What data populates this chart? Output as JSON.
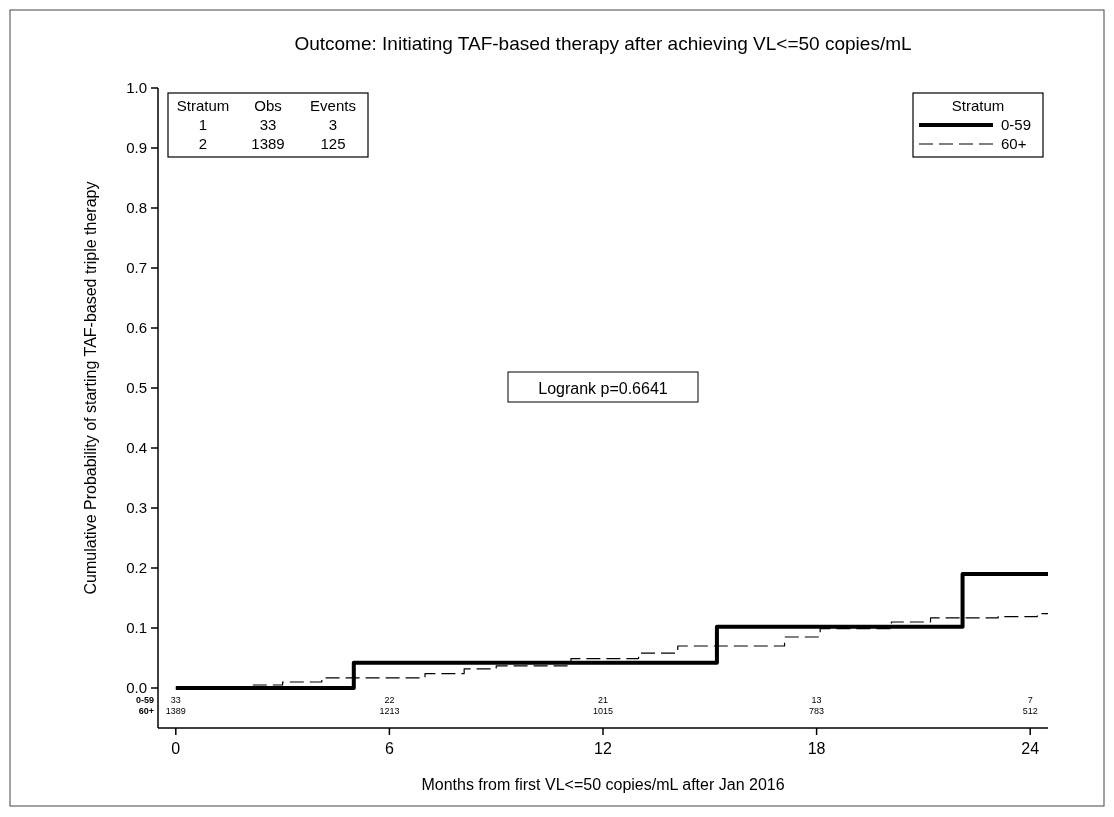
{
  "chart_data": {
    "type": "step",
    "title": "Outcome: Initiating TAF-based therapy after achieving VL<=50 copies/mL",
    "xlabel": "Months from first VL<=50 copies/mL after Jan 2016",
    "ylabel": "Cumulative Probability of starting TAF-based triple therapy",
    "legend_title": "Stratum",
    "legend": "top right",
    "grid": false,
    "xlim": [
      -0.5,
      24.5
    ],
    "xticks": [
      0,
      6,
      12,
      18,
      24
    ],
    "ylim": [
      0,
      1
    ],
    "yticks": [
      {
        "value": 0,
        "label": "0.0"
      },
      {
        "value": 0.1,
        "label": "0.1"
      },
      {
        "value": 0.2,
        "label": "0.2"
      },
      {
        "value": 0.3,
        "label": "0.3"
      },
      {
        "value": 0.4,
        "label": "0.4"
      },
      {
        "value": 0.5,
        "label": "0.5"
      },
      {
        "value": 0.6,
        "label": "0.6"
      },
      {
        "value": 0.7,
        "label": "0.7"
      },
      {
        "value": 0.8,
        "label": "0.8"
      },
      {
        "value": 0.9,
        "label": "0.9"
      },
      {
        "value": 1,
        "label": "1.0"
      }
    ],
    "series": [
      {
        "name": "0-59",
        "color": "#000000",
        "line_style": "solid",
        "x": [
          0,
          5,
          15.2,
          22.1,
          24.5
        ],
        "values": [
          0,
          0.042,
          0.102,
          0.19,
          0.19
        ]
      },
      {
        "name": "60+",
        "color": "#000000",
        "line_style": "dashed",
        "x": [
          0,
          2.1,
          3,
          4.1,
          7,
          8.1,
          9,
          11.1,
          13,
          14.1,
          17.1,
          18.1,
          20.1,
          21.2,
          23.1,
          24.2,
          24.5
        ],
        "values": [
          0,
          0.005,
          0.01,
          0.017,
          0.024,
          0.032,
          0.037,
          0.049,
          0.058,
          0.07,
          0.085,
          0.099,
          0.11,
          0.117,
          0.119,
          0.124,
          0.124
        ]
      }
    ],
    "annotations": [
      "Stratum\tObs\tEvents",
      "1\t33\t3",
      "2\t1389\t125",
      "Logrank p=0.6641",
      "0-59\t33\t22\t21\t13\t7",
      "60+\t1389\t1213\t1015\t783\t512"
    ]
  }
}
